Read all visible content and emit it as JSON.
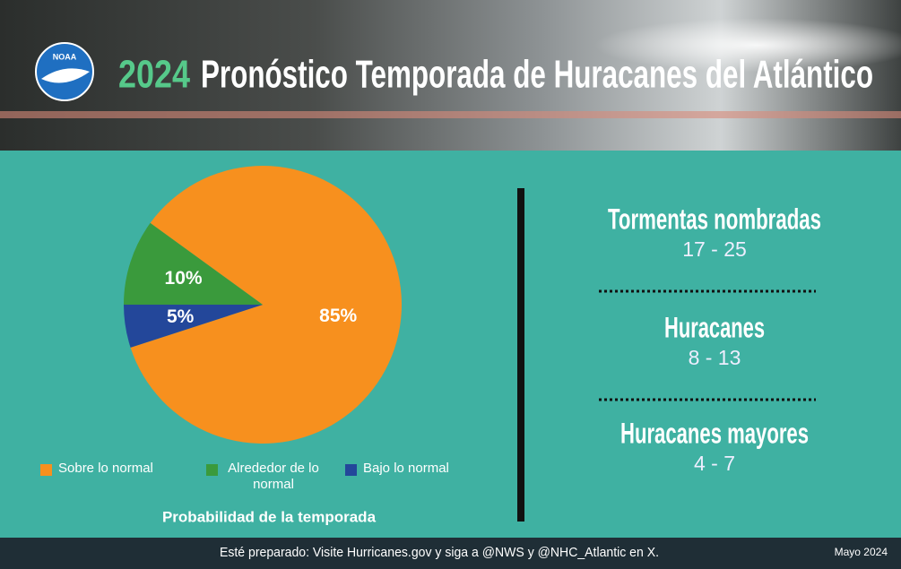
{
  "header": {
    "logo": "NOAA",
    "year": "2024",
    "title": "Pronóstico Temporada de Huracanes del Atlántico"
  },
  "chart_data": {
    "type": "pie",
    "categories": [
      "Sobre lo normal",
      "Alrededor de lo normal",
      "Bajo lo normal"
    ],
    "values": [
      85,
      10,
      5
    ],
    "value_labels": [
      "85%",
      "10%",
      "5%"
    ],
    "colors": [
      "#f7901e",
      "#3a9a3c",
      "#23479a"
    ],
    "caption": "Probabilidad de la temporada"
  },
  "stats": [
    {
      "label": "Tormentas nombradas",
      "range": "17 - 25"
    },
    {
      "label": "Huracanes",
      "range": "8 - 13"
    },
    {
      "label": "Huracanes mayores",
      "range": "4 - 7"
    }
  ],
  "footer": {
    "text": "Esté preparado: Visite Hurricanes.gov y siga a @NWS y @NHC_Atlantic en X.",
    "date": "Mayo 2024"
  }
}
